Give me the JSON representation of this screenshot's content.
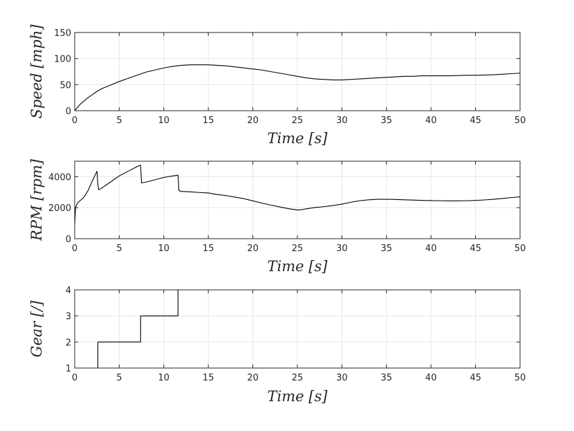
{
  "colors": {
    "line": "#000000",
    "axis": "#262626",
    "grid": "#e6e6e6",
    "background": "#ffffff"
  },
  "chart_data": [
    {
      "type": "line",
      "xlabel": "Time [s]",
      "ylabel": "Speed [mph]",
      "xlim": [
        0,
        50
      ],
      "ylim": [
        0,
        150
      ],
      "xticks": [
        0,
        5,
        10,
        15,
        20,
        25,
        30,
        35,
        40,
        45,
        50
      ],
      "yticks": [
        0,
        50,
        100,
        150
      ],
      "grid": true,
      "series": [
        {
          "x": [
            0,
            0.3,
            0.6,
            1,
            1.5,
            2,
            2.5,
            3,
            4,
            5,
            6,
            7,
            7.5,
            8,
            9,
            10,
            11,
            12,
            13,
            14,
            15,
            16,
            17,
            18,
            19,
            20,
            21,
            22,
            23,
            24,
            25,
            26,
            27,
            28,
            29,
            30,
            31,
            32,
            33,
            34,
            35,
            36,
            37,
            38,
            39,
            40,
            41,
            42,
            43,
            44,
            45,
            46,
            47,
            48,
            49,
            50
          ],
          "y": [
            0,
            6,
            12,
            18,
            25,
            31,
            37,
            42,
            49,
            56,
            62,
            68,
            71,
            74,
            78,
            82,
            85,
            87,
            88,
            88,
            88,
            87,
            86,
            84,
            82,
            80,
            78,
            75,
            72,
            69,
            66,
            63,
            61,
            60,
            59,
            59,
            60,
            61,
            62,
            63,
            64,
            65,
            66,
            66,
            67,
            67,
            67,
            67,
            67.5,
            68,
            68,
            68.5,
            69,
            70,
            71,
            72
          ]
        }
      ]
    },
    {
      "type": "line",
      "xlabel": "Time [s]",
      "ylabel": "RPM [rpm]",
      "xlim": [
        0,
        50
      ],
      "ylim": [
        0,
        5000
      ],
      "xticks": [
        0,
        5,
        10,
        15,
        20,
        25,
        30,
        35,
        40,
        45,
        50
      ],
      "yticks": [
        0,
        2000,
        4000
      ],
      "grid": true,
      "series": [
        {
          "x": [
            0,
            0.1,
            0.3,
            0.5,
            1,
            1.5,
            2,
            2.5,
            2.6,
            2.7,
            3,
            4,
            5,
            6,
            7,
            7.4,
            7.5,
            8,
            9,
            10,
            11,
            11.6,
            11.7,
            12,
            13,
            14,
            15,
            16,
            17,
            18,
            19,
            20,
            21,
            22,
            23,
            24,
            25,
            25.5,
            26,
            27,
            28,
            29,
            30,
            31,
            32,
            33,
            34,
            35,
            36,
            37,
            38,
            39,
            40,
            41,
            42,
            43,
            44,
            45,
            46,
            47,
            48,
            49,
            50
          ],
          "y": [
            900,
            2000,
            2300,
            2400,
            2650,
            3100,
            3750,
            4350,
            3500,
            3150,
            3250,
            3650,
            4050,
            4350,
            4650,
            4750,
            3600,
            3650,
            3800,
            3950,
            4050,
            4100,
            3100,
            3050,
            3020,
            2980,
            2950,
            2850,
            2780,
            2680,
            2580,
            2440,
            2300,
            2170,
            2050,
            1940,
            1850,
            1870,
            1930,
            2010,
            2070,
            2140,
            2230,
            2350,
            2450,
            2510,
            2540,
            2540,
            2530,
            2510,
            2490,
            2470,
            2460,
            2450,
            2440,
            2440,
            2450,
            2470,
            2500,
            2540,
            2590,
            2650,
            2700
          ]
        }
      ]
    },
    {
      "type": "line",
      "xlabel": "Time [s]",
      "ylabel": "Gear [/]",
      "xlim": [
        0,
        50
      ],
      "ylim": [
        1,
        4
      ],
      "xticks": [
        0,
        5,
        10,
        15,
        20,
        25,
        30,
        35,
        40,
        45,
        50
      ],
      "yticks": [
        1,
        2,
        3,
        4
      ],
      "grid": true,
      "series": [
        {
          "x": [
            0,
            2.6,
            2.6,
            7.4,
            7.4,
            11.6,
            11.6,
            50
          ],
          "y": [
            1,
            1,
            2,
            2,
            3,
            3,
            4,
            4
          ]
        }
      ]
    }
  ]
}
